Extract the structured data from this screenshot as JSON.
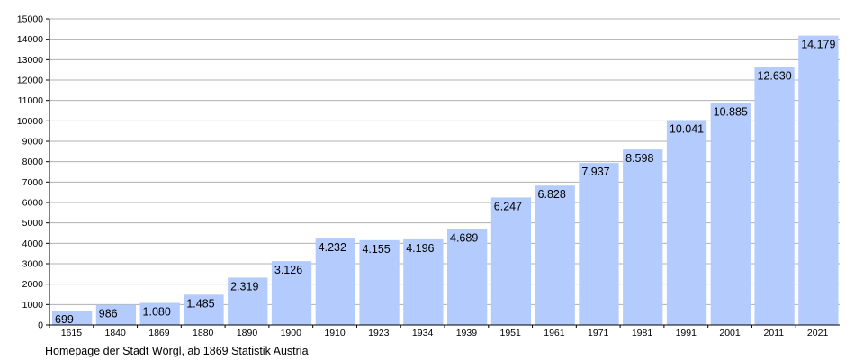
{
  "chart_data": {
    "type": "bar",
    "categories": [
      "1615",
      "1840",
      "1869",
      "1880",
      "1890",
      "1900",
      "1910",
      "1923",
      "1934",
      "1939",
      "1951",
      "1961",
      "1971",
      "1981",
      "1991",
      "2001",
      "2011",
      "2021"
    ],
    "values": [
      699,
      986,
      1080,
      1485,
      2319,
      3126,
      4232,
      4155,
      4196,
      4689,
      6247,
      6828,
      7937,
      8598,
      10041,
      10885,
      12630,
      14179
    ],
    "value_labels": [
      "699",
      "986",
      "1.080",
      "1.485",
      "2.319",
      "3.126",
      "4.232",
      "4.155",
      "4.196",
      "4.689",
      "6.247",
      "6.828",
      "7.937",
      "8.598",
      "10.041",
      "10.885",
      "12.630",
      "14.179"
    ],
    "yticks": [
      0,
      1000,
      2000,
      3000,
      4000,
      5000,
      6000,
      7000,
      8000,
      9000,
      10000,
      11000,
      12000,
      13000,
      14000,
      15000
    ],
    "ylim": [
      0,
      15000
    ],
    "grid": true,
    "legend": "none",
    "bar_color": "#b3cbfd",
    "grid_color": "#b0b0b0"
  },
  "source": "Homepage der Stadt Wörgl, ab 1869 Statistik Austria"
}
